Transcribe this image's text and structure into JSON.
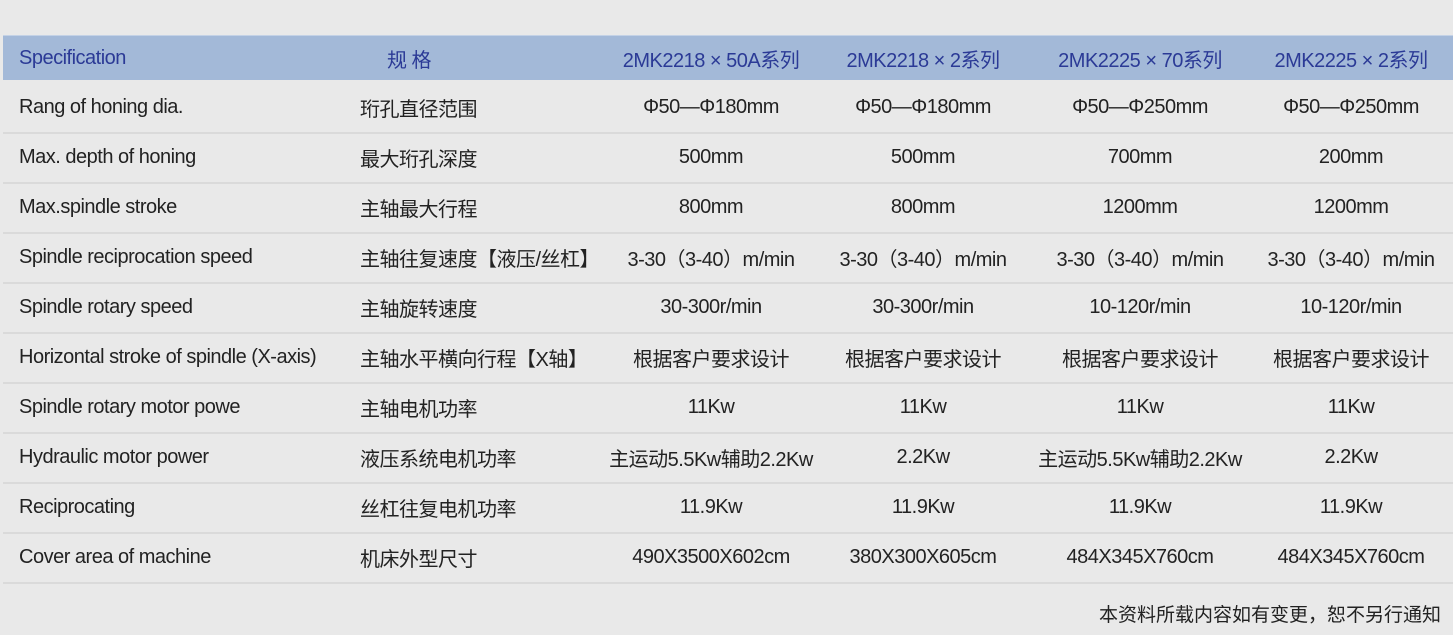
{
  "header": [
    "Specification",
    "规 格",
    "2MK2218 × 50A系列",
    "2MK2218 × 2系列",
    "2MK2225 × 70系列",
    "2MK2225 × 2系列"
  ],
  "rows": [
    [
      "Rang of honing dia.",
      "珩孔直径范围",
      "Φ50—Φ180mm",
      "Φ50—Φ180mm",
      "Φ50—Φ250mm",
      "Φ50—Φ250mm"
    ],
    [
      "Max. depth of honing",
      "最大珩孔深度",
      "500mm",
      "500mm",
      "700mm",
      "200mm"
    ],
    [
      "Max.spindle stroke",
      "主轴最大行程",
      "800mm",
      "800mm",
      "1200mm",
      "1200mm"
    ],
    [
      "Spindle reciprocation speed",
      "主轴往复速度【液压/丝杠】",
      "3-30（3-40）m/min",
      "3-30（3-40）m/min",
      "3-30（3-40）m/min",
      "3-30（3-40）m/min"
    ],
    [
      "Spindle rotary speed",
      "主轴旋转速度",
      "30-300r/min",
      "30-300r/min",
      "10-120r/min",
      "10-120r/min"
    ],
    [
      "Horizontal stroke of spindle (X-axis)",
      "主轴水平横向行程【X轴】",
      "根据客户要求设计",
      "根据客户要求设计",
      "根据客户要求设计",
      "根据客户要求设计"
    ],
    [
      "Spindle rotary motor powe",
      "主轴电机功率",
      "11Kw",
      "11Kw",
      "11Kw",
      "11Kw"
    ],
    [
      "Hydraulic motor power",
      "液压系统电机功率",
      "主运动5.5Kw辅助2.2Kw",
      "2.2Kw",
      "主运动5.5Kw辅助2.2Kw",
      "2.2Kw"
    ],
    [
      "Reciprocating",
      "丝杠往复电机功率",
      "11.9Kw",
      "11.9Kw",
      "11.9Kw",
      "11.9Kw"
    ],
    [
      "Cover area of machine",
      "机床外型尺寸",
      "490X3500X602cm",
      "380X300X605cm",
      "484X345X760cm",
      "484X345X760cm"
    ]
  ],
  "note": "本资料所载内容如有变更，恕不另行通知",
  "colors": {
    "header_bg": "#a3b9d8",
    "header_text": "#2b3a96",
    "background": "#e9e9e9"
  }
}
